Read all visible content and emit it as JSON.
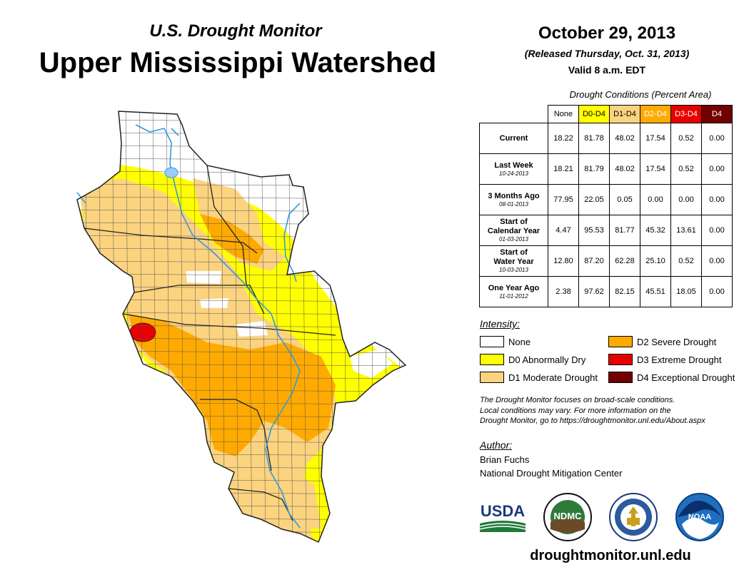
{
  "header": {
    "subtitle": "U.S. Drought Monitor",
    "title": "Upper Mississippi Watershed",
    "date": "October 29, 2013",
    "released": "(Released Thursday, Oct. 31, 2013)",
    "valid": "Valid 8 a.m. EDT"
  },
  "table": {
    "caption": "Drought Conditions (Percent Area)",
    "columns": [
      {
        "label": "None",
        "color": "#ffffff",
        "text_color": "#000000"
      },
      {
        "label": "D0-D4",
        "color": "#ffff00",
        "text_color": "#000000"
      },
      {
        "label": "D1-D4",
        "color": "#fcd37f",
        "text_color": "#000000"
      },
      {
        "label": "D2-D4",
        "color": "#ffaa00",
        "text_color": "#ffffff"
      },
      {
        "label": "D3-D4",
        "color": "#e60000",
        "text_color": "#ffffff"
      },
      {
        "label": "D4",
        "color": "#730000",
        "text_color": "#ffffff"
      }
    ],
    "rows": [
      {
        "label": "Current",
        "label2": "",
        "date": "",
        "values": [
          "18.22",
          "81.78",
          "48.02",
          "17.54",
          "0.52",
          "0.00"
        ]
      },
      {
        "label": "Last Week",
        "label2": "",
        "date": "10-24-2013",
        "values": [
          "18.21",
          "81.79",
          "48.02",
          "17.54",
          "0.52",
          "0.00"
        ]
      },
      {
        "label": "3 Months Ago",
        "label2": "",
        "date": "08-01-2013",
        "values": [
          "77.95",
          "22.05",
          "0.05",
          "0.00",
          "0.00",
          "0.00"
        ]
      },
      {
        "label": "Start of",
        "label2": "Calendar Year",
        "date": "01-03-2013",
        "values": [
          "4.47",
          "95.53",
          "81.77",
          "45.32",
          "13.61",
          "0.00"
        ]
      },
      {
        "label": "Start of",
        "label2": "Water Year",
        "date": "10-03-2013",
        "values": [
          "12.80",
          "87.20",
          "62.28",
          "25.10",
          "0.52",
          "0.00"
        ]
      },
      {
        "label": "One Year Ago",
        "label2": "",
        "date": "11-01-2012",
        "values": [
          "2.38",
          "97.62",
          "82.15",
          "45.51",
          "18.05",
          "0.00"
        ]
      }
    ]
  },
  "legend": {
    "title": "Intensity:",
    "items": [
      {
        "label": "None",
        "color": "#ffffff"
      },
      {
        "label": "D0 Abnormally Dry",
        "color": "#ffff00"
      },
      {
        "label": "D1 Moderate Drought",
        "color": "#fcd37f"
      },
      {
        "label": "D2 Severe Drought",
        "color": "#ffaa00"
      },
      {
        "label": "D3 Extreme Drought",
        "color": "#e60000"
      },
      {
        "label": "D4 Exceptional Drought",
        "color": "#730000"
      }
    ]
  },
  "note": {
    "line1": "The Drought Monitor focuses on broad-scale conditions.",
    "line2": "Local conditions may vary. For more information on the",
    "line3": "Drought Monitor, go to https://droughtmonitor.unl.edu/About.aspx"
  },
  "author": {
    "heading": "Author:",
    "name": "Brian Fuchs",
    "org": "National Drought Mitigation Center"
  },
  "logos": {
    "usda": "USDA",
    "ndmc": "NDMC",
    "noaa": "NOAA"
  },
  "footer": {
    "website": "droughtmonitor.unl.edu"
  },
  "map_colors": {
    "river": "#3399dd",
    "lake": "#99ccff",
    "county_line": "#555555"
  }
}
